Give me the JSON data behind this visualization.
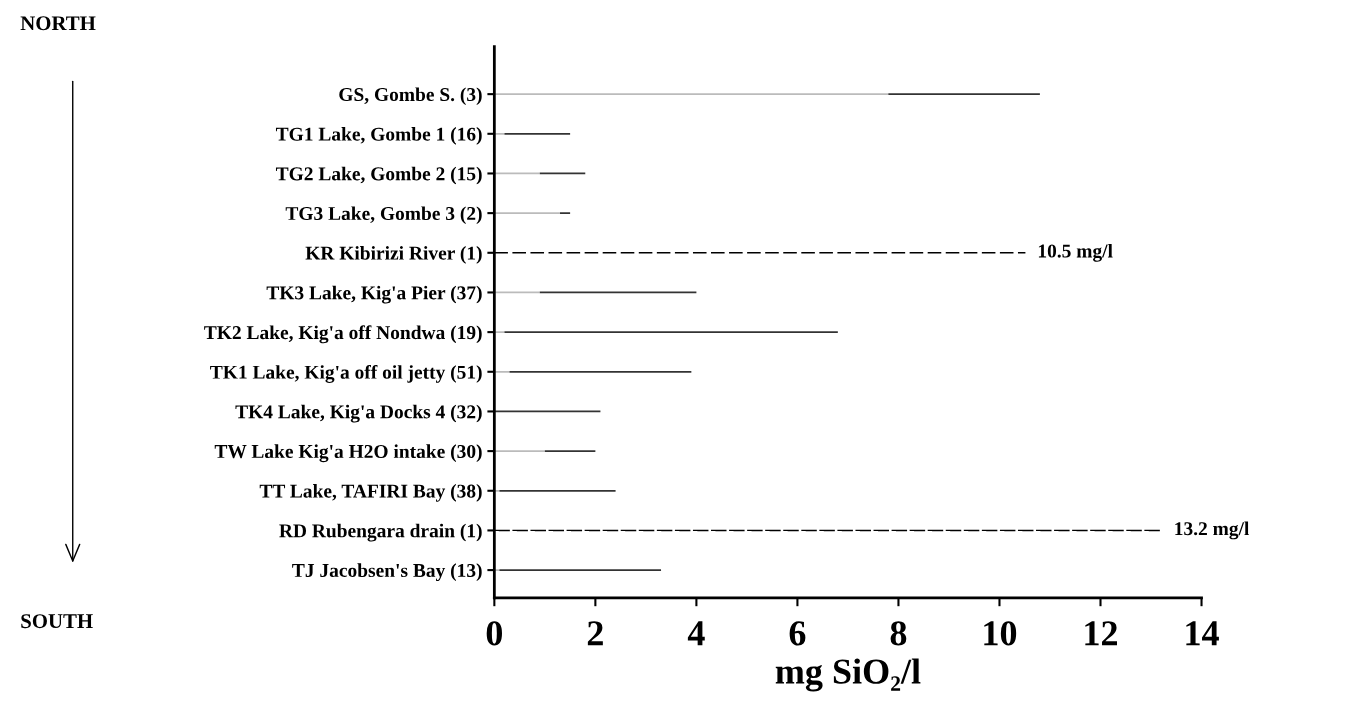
{
  "chart_data": {
    "type": "bar",
    "orientation": "horizontal",
    "stacked": true,
    "xlabel": "mg SiO₂/l",
    "categories": [
      "GS, Gombe S. (3)",
      "TG1 Lake, Gombe 1 (16)",
      "TG2 Lake, Gombe 2 (15)",
      "TG3 Lake, Gombe 3 (2)",
      "KR Kibirizi River (1)",
      "TK3 Lake, Kig'a Pier (37)",
      "TK2 Lake, Kig'a off Nondwa (19)",
      "TK1 Lake, Kig'a off oil jetty (51)",
      "TK4 Lake, Kig'a Docks 4 (32)",
      "TW Lake Kig'a H2O intake (30)",
      "TT Lake, TAFIRI Bay (38)",
      "RD Rubengara drain (1)",
      "TJ Jacobsen's Bay (13)"
    ],
    "series": [
      {
        "color": "#bbbbbb",
        "values": [
          7.8,
          0.2,
          0.9,
          1.3,
          null,
          0.9,
          0.2,
          0.3,
          null,
          1.0,
          0.1,
          null,
          0.1
        ]
      },
      {
        "color": "#333333",
        "values": [
          3.0,
          1.3,
          0.9,
          0.2,
          null,
          3.1,
          6.6,
          3.6,
          2.1,
          1.0,
          2.3,
          null,
          3.2
        ]
      },
      {
        "color": "#000000",
        "line_style": "dashed",
        "values": [
          null,
          null,
          null,
          null,
          10.5,
          null,
          null,
          null,
          null,
          null,
          null,
          13.2,
          null
        ],
        "value_labels": [
          null,
          null,
          null,
          null,
          "10.5 mg/l",
          null,
          null,
          null,
          null,
          null,
          null,
          "13.2 mg/l",
          null
        ]
      }
    ],
    "xlim": [
      0,
      14
    ],
    "xticks": [
      0,
      2,
      4,
      6,
      8,
      10,
      12,
      14
    ],
    "annotations": [
      "NORTH",
      "SOUTH"
    ],
    "grid": false,
    "legend": false
  }
}
